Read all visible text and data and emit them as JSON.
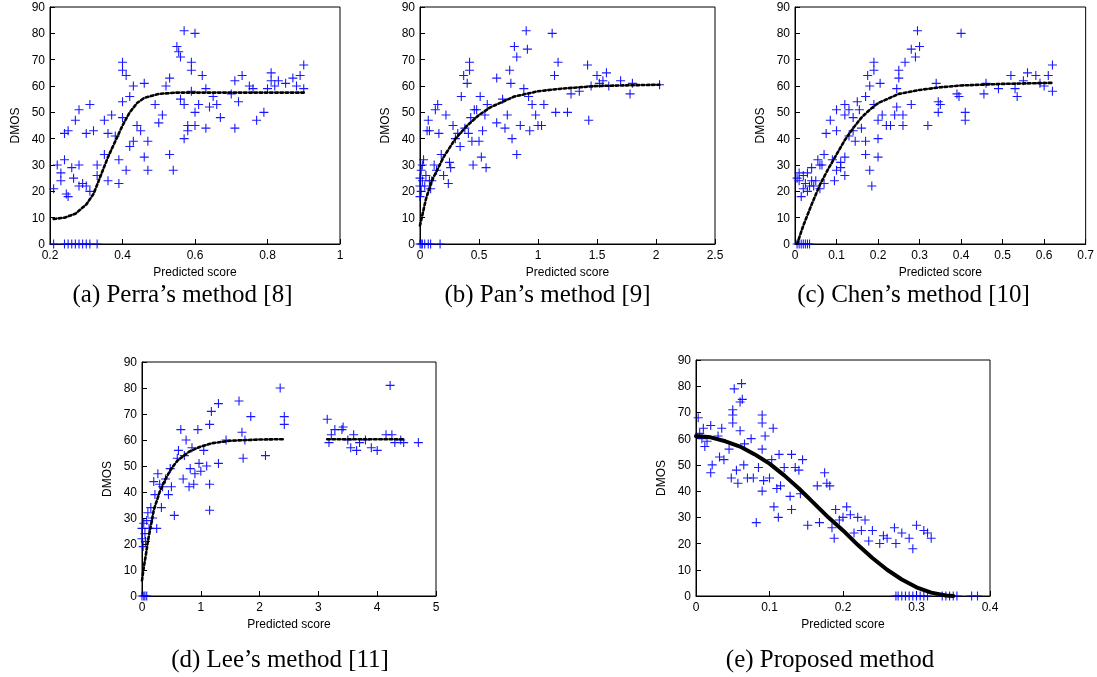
{
  "chart_data": [
    {
      "type": "scatter",
      "title": "(a) Perra’s method [8]",
      "xlabel": "Predicted score",
      "ylabel": "DMOS",
      "xlim": [
        0.2,
        1
      ],
      "xticks": [
        0.2,
        0.4,
        0.6,
        0.8,
        1
      ],
      "ylim": [
        0,
        90
      ],
      "yticks": [
        0,
        10,
        20,
        30,
        40,
        50,
        60,
        70,
        80,
        90
      ],
      "grid": false,
      "series": [
        {
          "type": "scatter",
          "color": "#0000ff",
          "marker": "cross",
          "x": [
            0.21,
            0.22,
            0.23,
            0.23,
            0.24,
            0.24,
            0.245,
            0.25,
            0.25,
            0.26,
            0.265,
            0.27,
            0.28,
            0.28,
            0.28,
            0.29,
            0.3,
            0.3,
            0.31,
            0.31,
            0.32,
            0.33,
            0.33,
            0.35,
            0.35,
            0.36,
            0.36,
            0.37,
            0.38,
            0.39,
            0.39,
            0.4,
            0.4,
            0.4,
            0.4,
            0.41,
            0.41,
            0.42,
            0.42,
            0.43,
            0.43,
            0.44,
            0.45,
            0.46,
            0.46,
            0.47,
            0.47,
            0.49,
            0.5,
            0.51,
            0.52,
            0.53,
            0.53,
            0.54,
            0.55,
            0.555,
            0.56,
            0.56,
            0.57,
            0.57,
            0.57,
            0.58,
            0.58,
            0.59,
            0.59,
            0.59,
            0.6,
            0.6,
            0.6,
            0.61,
            0.62,
            0.63,
            0.63,
            0.64,
            0.65,
            0.66,
            0.67,
            0.7,
            0.71,
            0.71,
            0.72,
            0.73,
            0.75,
            0.76,
            0.77,
            0.79,
            0.8,
            0.81,
            0.81,
            0.82,
            0.83,
            0.85,
            0.87,
            0.88,
            0.89,
            0.9,
            0.9,
            0.21,
            0.24,
            0.25,
            0.26,
            0.27,
            0.28,
            0.29,
            0.3,
            0.31,
            0.33
          ],
          "values": [
            21,
            30,
            27,
            24,
            42,
            32,
            19,
            43,
            18,
            29,
            25,
            47,
            51,
            30,
            22,
            23,
            42,
            22,
            53,
            20,
            43,
            30,
            26,
            47,
            34,
            42,
            24,
            49,
            41,
            32,
            23,
            69,
            66,
            54,
            48,
            64,
            28,
            56,
            37,
            60,
            39,
            45,
            43,
            61,
            33,
            39,
            28,
            53,
            46,
            49,
            60,
            63,
            34,
            28,
            75,
            73,
            71,
            55,
            81,
            53,
            40,
            45,
            43,
            69,
            66,
            58,
            80,
            50,
            45,
            53,
            64,
            59,
            44,
            52,
            56,
            53,
            48,
            57,
            62,
            44,
            54,
            64,
            60,
            59,
            47,
            50,
            59,
            62,
            65,
            60,
            62,
            61,
            63,
            60,
            64,
            68,
            59,
            0,
            0,
            0,
            0,
            0,
            0,
            0,
            0,
            0,
            0
          ]
        },
        {
          "type": "line",
          "color": "#000000",
          "marker": "none",
          "line_style": "dotted",
          "x": [
            0.21,
            0.24,
            0.27,
            0.3,
            0.32,
            0.34,
            0.36,
            0.38,
            0.4,
            0.42,
            0.44,
            0.46,
            0.5,
            0.55,
            0.6,
            0.9
          ],
          "values": [
            9.5,
            10,
            11.5,
            15,
            19,
            26,
            33,
            39,
            45,
            50,
            53.5,
            55.5,
            57,
            57.5,
            57.5,
            57.5
          ]
        }
      ]
    },
    {
      "type": "scatter",
      "title": "(b) Pan’s method [9]",
      "xlabel": "Predicted score",
      "ylabel": "DMOS",
      "xlim": [
        0,
        2.5
      ],
      "xticks": [
        0,
        0.5,
        1,
        1.5,
        2,
        2.5
      ],
      "ylim": [
        0,
        90
      ],
      "yticks": [
        0,
        10,
        20,
        30,
        40,
        50,
        60,
        70,
        80,
        90
      ],
      "grid": false,
      "series": [
        {
          "type": "scatter",
          "color": "#0000ff",
          "marker": "cross",
          "x": [
            0.0,
            0.0,
            0.0,
            0.01,
            0.01,
            0.02,
            0.02,
            0.03,
            0.04,
            0.05,
            0.06,
            0.07,
            0.08,
            0.08,
            0.09,
            0.1,
            0.12,
            0.13,
            0.14,
            0.15,
            0.16,
            0.18,
            0.2,
            0.22,
            0.24,
            0.25,
            0.26,
            0.28,
            0.3,
            0.32,
            0.34,
            0.35,
            0.37,
            0.38,
            0.4,
            0.41,
            0.42,
            0.42,
            0.43,
            0.44,
            0.45,
            0.46,
            0.48,
            0.5,
            0.51,
            0.52,
            0.53,
            0.55,
            0.56,
            0.57,
            0.65,
            0.65,
            0.7,
            0.72,
            0.74,
            0.76,
            0.77,
            0.78,
            0.8,
            0.82,
            0.82,
            0.85,
            0.88,
            0.9,
            0.91,
            0.92,
            0.93,
            0.95,
            0.98,
            1.0,
            1.03,
            1.05,
            1.12,
            1.14,
            1.15,
            1.17,
            1.25,
            1.28,
            1.35,
            1.42,
            1.43,
            1.45,
            1.5,
            1.52,
            1.55,
            1.58,
            1.6,
            1.7,
            1.78,
            1.8,
            2.03,
            0,
            0.01,
            0.02,
            0.04,
            0.07,
            0.09,
            0.17
          ],
          "values": [
            25,
            22,
            18,
            28,
            20,
            30,
            24,
            32,
            22,
            26,
            43,
            47,
            43,
            24,
            21,
            24,
            30,
            51,
            28,
            53,
            42,
            34,
            26,
            49,
            23,
            31,
            29,
            45,
            40,
            42,
            37,
            56,
            64,
            44,
            61,
            42,
            69,
            66,
            48,
            39,
            30,
            51,
            51,
            39,
            56,
            33,
            43,
            49,
            29,
            53,
            63,
            46,
            55,
            44,
            49,
            66,
            61,
            40,
            75,
            71,
            34,
            45,
            59,
            81,
            74,
            56,
            43,
            53,
            49,
            45,
            45,
            53,
            80,
            64,
            50,
            69,
            50,
            57,
            58,
            68,
            47,
            60,
            64,
            61,
            62,
            65,
            60,
            62,
            57,
            61,
            60.5,
            0,
            0,
            0,
            0,
            0,
            0,
            0
          ]
        },
        {
          "type": "line",
          "color": "#000000",
          "marker": "none",
          "line_style": "dotted",
          "x": [
            0,
            0.05,
            0.1,
            0.2,
            0.3,
            0.4,
            0.5,
            0.6,
            0.8,
            1.0,
            1.2,
            1.5,
            1.8,
            2.03
          ],
          "values": [
            7,
            17,
            24,
            33,
            40,
            45,
            49,
            52,
            56,
            58,
            59,
            60,
            60.3,
            60.5
          ]
        }
      ]
    },
    {
      "type": "scatter",
      "title": "(c) Chen’s method [10]",
      "xlabel": "Predicted score",
      "ylabel": "DMOS",
      "xlim": [
        0,
        0.7
      ],
      "xticks": [
        0,
        0.1,
        0.2,
        0.3,
        0.4,
        0.5,
        0.6,
        0.7
      ],
      "ylim": [
        0,
        90
      ],
      "yticks": [
        0,
        10,
        20,
        30,
        40,
        50,
        60,
        70,
        80,
        90
      ],
      "grid": false,
      "series": [
        {
          "type": "scatter",
          "color": "#0000ff",
          "marker": "cross",
          "x": [
            0.005,
            0.01,
            0.01,
            0.015,
            0.02,
            0.02,
            0.025,
            0.03,
            0.03,
            0.035,
            0.04,
            0.04,
            0.045,
            0.05,
            0.055,
            0.06,
            0.06,
            0.065,
            0.07,
            0.07,
            0.075,
            0.085,
            0.09,
            0.095,
            0.1,
            0.1,
            0.1,
            0.11,
            0.11,
            0.12,
            0.12,
            0.12,
            0.12,
            0.13,
            0.13,
            0.14,
            0.14,
            0.145,
            0.15,
            0.155,
            0.16,
            0.17,
            0.17,
            0.17,
            0.175,
            0.18,
            0.18,
            0.185,
            0.19,
            0.19,
            0.19,
            0.2,
            0.2,
            0.2,
            0.205,
            0.21,
            0.22,
            0.23,
            0.24,
            0.245,
            0.245,
            0.25,
            0.25,
            0.26,
            0.26,
            0.265,
            0.28,
            0.28,
            0.29,
            0.295,
            0.3,
            0.32,
            0.34,
            0.345,
            0.345,
            0.35,
            0.39,
            0.395,
            0.4,
            0.41,
            0.41,
            0.455,
            0.46,
            0.49,
            0.52,
            0.53,
            0.535,
            0.55,
            0.56,
            0.58,
            0.59,
            0.6,
            0.61,
            0.62,
            0.62,
            0.005,
            0.01,
            0.015,
            0.02,
            0.025,
            0.03,
            0.035
          ],
          "values": [
            25,
            24,
            27,
            18,
            21,
            26,
            23,
            27,
            20,
            22,
            29,
            24,
            22,
            24,
            32,
            30,
            21,
            30,
            23,
            34,
            42,
            47,
            32,
            24,
            43,
            28,
            51,
            29,
            31,
            53,
            49,
            33,
            26,
            51,
            41,
            48,
            43,
            39,
            54,
            51,
            44,
            56,
            39,
            34,
            64,
            28,
            60,
            22,
            69,
            66,
            53,
            47,
            40,
            33,
            61,
            49,
            45,
            45,
            49,
            59,
            52,
            63,
            66,
            49,
            45,
            69,
            53,
            74,
            71,
            81,
            75,
            45,
            61,
            54,
            50,
            53,
            57,
            56,
            80,
            50,
            47,
            57,
            61,
            59,
            64,
            59,
            56,
            62,
            65,
            64,
            61,
            60,
            64,
            68,
            58,
            0,
            0,
            0,
            0,
            0,
            0,
            0
          ]
        },
        {
          "type": "line",
          "color": "#000000",
          "marker": "none",
          "line_style": "dotted",
          "x": [
            0.005,
            0.02,
            0.04,
            0.06,
            0.08,
            0.1,
            0.12,
            0.14,
            0.16,
            0.18,
            0.2,
            0.25,
            0.3,
            0.35,
            0.4,
            0.5,
            0.62
          ],
          "values": [
            0,
            7,
            15,
            22.5,
            28.5,
            34,
            39.5,
            44,
            48,
            51,
            53.5,
            57,
            58.5,
            59.5,
            60.2,
            60.8,
            61.2
          ]
        }
      ]
    },
    {
      "type": "scatter",
      "title": "(d) Lee’s method [11]",
      "xlabel": "Predicted score",
      "ylabel": "DMOS",
      "xlim": [
        0,
        5
      ],
      "xticks": [
        0,
        1,
        2,
        3,
        4,
        5
      ],
      "ylim": [
        0,
        90
      ],
      "yticks": [
        0,
        10,
        20,
        30,
        40,
        50,
        60,
        70,
        80,
        90
      ],
      "grid": false,
      "series": [
        {
          "type": "scatter",
          "color": "#0000ff",
          "marker": "cross",
          "x": [
            0,
            0,
            0.02,
            0.03,
            0.05,
            0.06,
            0.08,
            0.1,
            0.12,
            0.15,
            0.18,
            0.2,
            0.22,
            0.25,
            0.27,
            0.3,
            0.33,
            0.35,
            0.4,
            0.45,
            0.48,
            0.5,
            0.55,
            0.6,
            0.62,
            0.66,
            0.7,
            0.72,
            0.75,
            0.8,
            0.82,
            0.85,
            0.88,
            0.9,
            0.95,
            0.97,
            1.0,
            1.05,
            1.1,
            1.15,
            1.15,
            1.15,
            1.18,
            1.3,
            1.3,
            1.43,
            1.65,
            1.7,
            1.72,
            1.75,
            1.85,
            2.1,
            2.35,
            2.42,
            2.42,
            3.15,
            3.18,
            3.22,
            3.28,
            3.4,
            3.42,
            3.5,
            3.55,
            3.6,
            3.65,
            3.7,
            3.8,
            3.9,
            4.0,
            4.15,
            4.22,
            4.25,
            4.3,
            4.4,
            4.45,
            4.7,
            0,
            0.03,
            0.05,
            0.08
          ],
          "values": [
            26,
            22,
            19,
            28,
            24,
            21,
            29,
            32,
            26,
            34,
            30,
            44,
            39,
            26,
            47,
            43,
            34,
            42,
            45,
            39,
            49,
            42,
            31,
            53,
            56,
            64,
            45,
            54,
            60,
            42,
            49,
            57,
            43,
            47,
            64,
            51,
            48,
            56,
            50,
            66,
            43,
            33,
            71,
            74,
            51,
            60,
            75,
            63,
            53,
            60,
            69,
            54,
            80,
            69,
            66,
            68,
            59,
            62,
            64,
            64,
            65,
            60,
            57,
            62,
            56,
            59,
            60,
            57,
            56,
            62,
            81,
            62,
            59,
            60,
            59,
            59,
            0,
            0,
            0,
            0
          ]
        },
        {
          "type": "line",
          "color": "#000000",
          "marker": "none",
          "line_style": "dotted",
          "x": [
            0,
            0.03,
            0.06,
            0.1,
            0.15,
            0.2,
            0.3,
            0.4,
            0.5,
            0.6,
            0.8,
            1.0,
            1.2,
            1.5,
            2.0,
            2.4,
            2.8,
            3.15,
            4.45
          ],
          "values": [
            6,
            11,
            15,
            21,
            27,
            33,
            40,
            45,
            49,
            52,
            55.5,
            57.5,
            58.8,
            59.7,
            60.2,
            60.3,
            null,
            60.3,
            60.3
          ]
        }
      ]
    },
    {
      "type": "scatter",
      "title": "(e) Proposed method",
      "xlabel": "Predicted score",
      "ylabel": "DMOS",
      "xlim": [
        0,
        0.4
      ],
      "xticks": [
        0,
        0.1,
        0.2,
        0.3,
        0.4
      ],
      "ylim": [
        0,
        90
      ],
      "yticks": [
        0,
        10,
        20,
        30,
        40,
        50,
        60,
        70,
        80,
        90
      ],
      "grid": false,
      "series": [
        {
          "type": "scatter",
          "color": "#0000ff",
          "marker": "cross",
          "x": [
            0.003,
            0.005,
            0.008,
            0.01,
            0.012,
            0.015,
            0.02,
            0.02,
            0.022,
            0.03,
            0.032,
            0.035,
            0.038,
            0.045,
            0.048,
            0.05,
            0.05,
            0.05,
            0.052,
            0.055,
            0.057,
            0.06,
            0.06,
            0.062,
            0.063,
            0.065,
            0.066,
            0.07,
            0.075,
            0.078,
            0.082,
            0.085,
            0.09,
            0.09,
            0.09,
            0.09,
            0.092,
            0.094,
            0.1,
            0.103,
            0.105,
            0.106,
            0.11,
            0.112,
            0.113,
            0.115,
            0.12,
            0.128,
            0.13,
            0.13,
            0.135,
            0.14,
            0.142,
            0.145,
            0.152,
            0.165,
            0.168,
            0.175,
            0.178,
            0.182,
            0.185,
            0.188,
            0.19,
            0.195,
            0.2,
            0.205,
            0.21,
            0.215,
            0.22,
            0.225,
            0.23,
            0.235,
            0.24,
            0.25,
            0.255,
            0.26,
            0.27,
            0.272,
            0.28,
            0.29,
            0.295,
            0.3,
            0.31,
            0.315,
            0.32,
            0.272,
            0.275,
            0.28,
            0.285,
            0.29,
            0.295,
            0.3,
            0.305,
            0.31,
            0.315,
            0.335,
            0.34,
            0.345,
            0.35,
            0.355,
            0.375,
            0.383
          ],
          "values": [
            68,
            62,
            60,
            64,
            57,
            59,
            65,
            47,
            50,
            61,
            53,
            64,
            52,
            56,
            45,
            71,
            69,
            66,
            79,
            48,
            43,
            74,
            63,
            81,
            75,
            50,
            58,
            45,
            60,
            45,
            28,
            49,
            69,
            66,
            56,
            40,
            44,
            61,
            45,
            52,
            64,
            34,
            41,
            30,
            54,
            42,
            49,
            38,
            54,
            33,
            49,
            48,
            39,
            52,
            27,
            42,
            28,
            47,
            43,
            42,
            26,
            22,
            33,
            29,
            30,
            34,
            31,
            24,
            30,
            25,
            29,
            21,
            25,
            20,
            23,
            22,
            26,
            20,
            24,
            22,
            18,
            27,
            25,
            24,
            22,
            0,
            0,
            0,
            0,
            0,
            0,
            0,
            0,
            0,
            0,
            0,
            0,
            0,
            0,
            0,
            0,
            0
          ]
        },
        {
          "type": "line",
          "color": "#000000",
          "marker": "none",
          "line_style": "solid",
          "x": [
            0,
            0.02,
            0.04,
            0.06,
            0.08,
            0.1,
            0.12,
            0.14,
            0.16,
            0.18,
            0.2,
            0.22,
            0.24,
            0.26,
            0.28,
            0.3,
            0.32,
            0.34,
            0.35
          ],
          "values": [
            61,
            60.5,
            59,
            57,
            54,
            50.5,
            46,
            41,
            35.5,
            30,
            25,
            19.5,
            14.5,
            10,
            6.3,
            3.3,
            1.3,
            0.2,
            0
          ]
        }
      ]
    }
  ]
}
